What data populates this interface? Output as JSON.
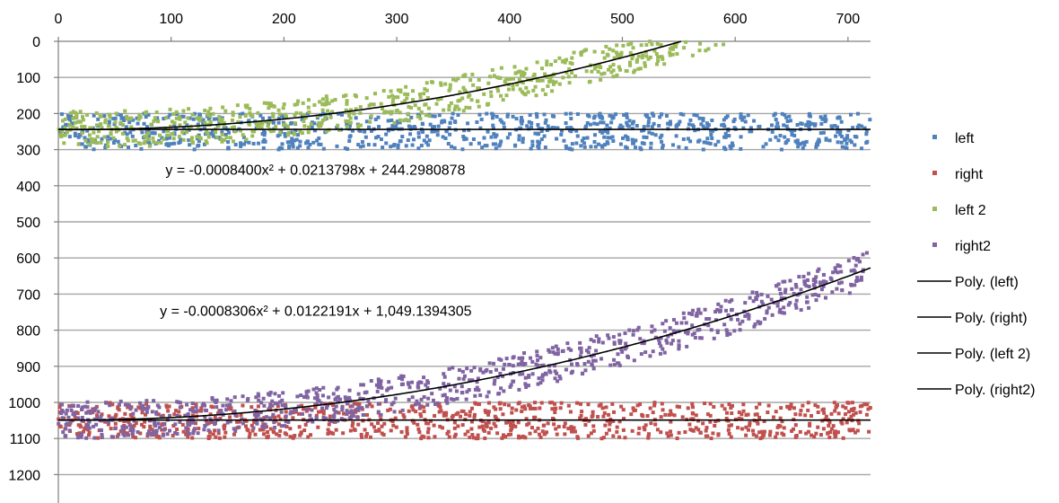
{
  "chart_data": {
    "type": "scatter",
    "x_axis": {
      "min": 0,
      "max": 720,
      "step": 100,
      "position": "top",
      "ticks": [
        "0",
        "100",
        "200",
        "300",
        "400",
        "500",
        "600",
        "700"
      ]
    },
    "y_axis": {
      "min": 0,
      "max": 1300,
      "step": 100,
      "reversed": true,
      "ticks": [
        "0",
        "100",
        "200",
        "300",
        "400",
        "500",
        "600",
        "700",
        "800",
        "900",
        "1000",
        "1100",
        "1200"
      ]
    },
    "gridlines": "horizontal",
    "legend_position": "right",
    "series": [
      {
        "name": "left",
        "color": "#4f81bd",
        "x_range": [
          0,
          720
        ],
        "band": [
          200,
          300
        ],
        "trend": {
          "name": "Poly. (left)",
          "coef": [
            0,
            0,
            244
          ]
        }
      },
      {
        "name": "right",
        "color": "#c0504d",
        "x_range": [
          0,
          720
        ],
        "band": [
          1000,
          1100
        ],
        "trend": {
          "name": "Poly. (right)",
          "coef": [
            0,
            0,
            1049
          ]
        }
      },
      {
        "name": "left 2",
        "color": "#9bbb59",
        "x_range": [
          0,
          590
        ],
        "spread": 50,
        "trend": {
          "name": "Poly. (left 2)",
          "coef": [
            -0.00084,
            0.0213798,
            244.2980878
          ]
        }
      },
      {
        "name": "right2",
        "color": "#8064a2",
        "x_range": [
          0,
          720
        ],
        "spread": 50,
        "trend": {
          "name": "Poly. (right2)",
          "coef": [
            -0.0008306,
            0.0122191,
            1049.1394305
          ]
        }
      }
    ],
    "annotations": [
      {
        "text": "y = -0.0008400x² + 0.0213798x + 244.2980878",
        "x": 95,
        "y": 370
      },
      {
        "text": "y = -0.0008306x² + 0.0122191x + 1,049.1394305",
        "x": 90,
        "y": 760
      }
    ]
  }
}
